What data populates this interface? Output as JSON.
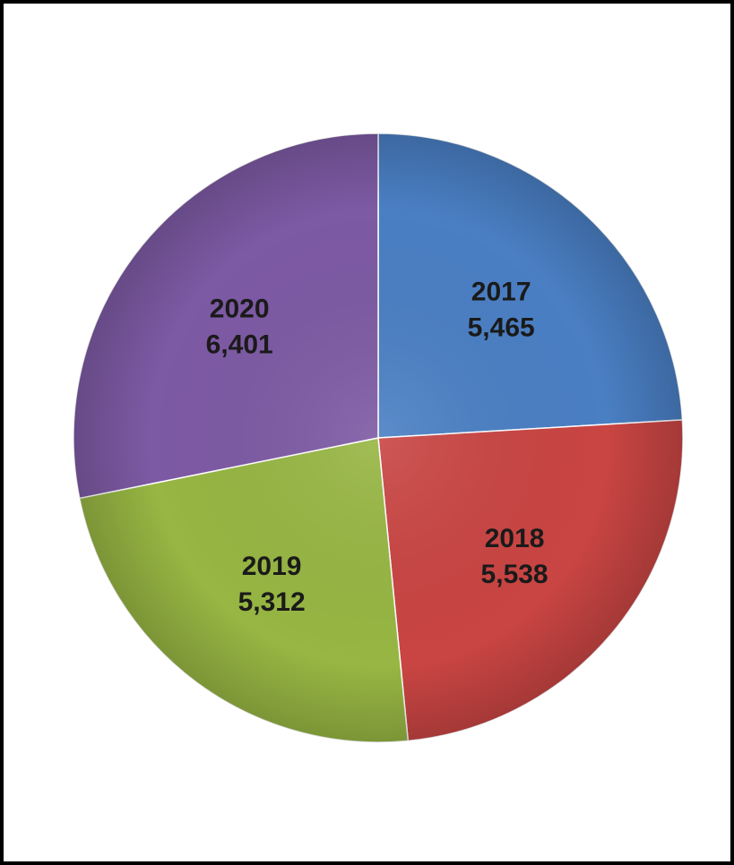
{
  "chart_data": {
    "type": "pie",
    "categories": [
      "2017",
      "2018",
      "2019",
      "2020"
    ],
    "values": [
      5465,
      5538,
      5312,
      6401
    ],
    "value_labels": [
      "5,465",
      "5,538",
      "5,312",
      "6,401"
    ],
    "colors": [
      "#4a7fc4",
      "#c94543",
      "#97b643",
      "#7d5aa4"
    ],
    "start": "12 o'clock",
    "direction": "clockwise",
    "legend": "none",
    "data_labels": "category and value inside slices"
  }
}
